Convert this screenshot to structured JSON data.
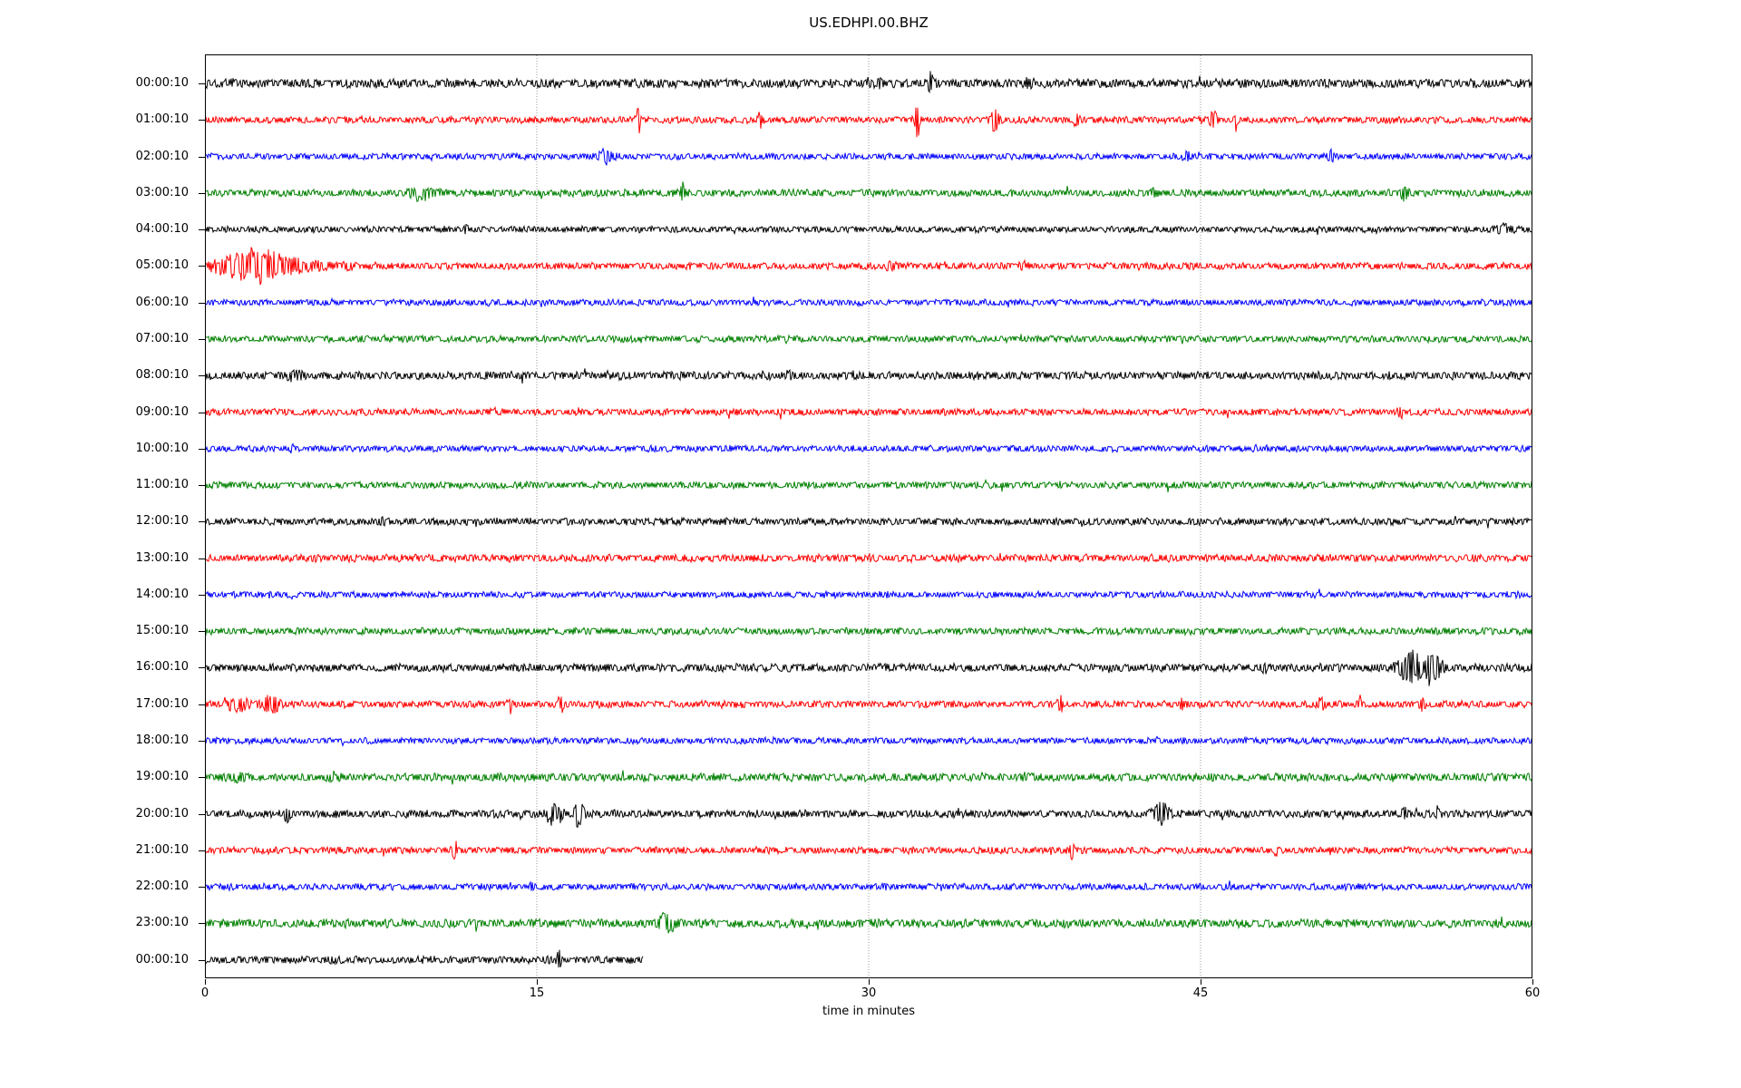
{
  "chart_data": {
    "type": "line",
    "subtype": "seismogram-helicorder",
    "title": "US.EDHPI.00.BHZ",
    "xlabel": "time in minutes",
    "x_range": [
      0,
      60
    ],
    "x_ticks": [
      "0",
      "15",
      "30",
      "45",
      "60"
    ],
    "x_tick_values": [
      0,
      15,
      30,
      45,
      60
    ],
    "grid_minutes": [
      15,
      30,
      45
    ],
    "grid_on": true,
    "grid_color": "#999999",
    "frame_color": "#000000",
    "background_color": "#ffffff",
    "colors_cycle": [
      "#000000",
      "#ff0000",
      "#0000ff",
      "#008000"
    ],
    "minutes_per_row": 60,
    "rows": [
      {
        "label": "00:00:10",
        "color": "#000000",
        "base": 4.2,
        "duration": 60,
        "events": [
          {
            "t": 30.5,
            "a": 4,
            "w": 0.1
          },
          {
            "t": 32.8,
            "a": 11,
            "w": 0.08
          },
          {
            "t": 37.3,
            "a": 4,
            "w": 0.15
          }
        ]
      },
      {
        "label": "01:00:10",
        "color": "#ff0000",
        "base": 3.2,
        "duration": 60,
        "events": [
          {
            "t": 19.6,
            "a": 14,
            "w": 0.07
          },
          {
            "t": 25.1,
            "a": 8,
            "w": 0.07
          },
          {
            "t": 32.2,
            "a": 20,
            "w": 0.07
          },
          {
            "t": 35.7,
            "a": 13,
            "w": 0.12
          },
          {
            "t": 39.4,
            "a": 6,
            "w": 0.1
          },
          {
            "t": 45.6,
            "a": 9,
            "w": 0.12
          },
          {
            "t": 46.6,
            "a": 10,
            "w": 0.06
          }
        ]
      },
      {
        "label": "02:00:10",
        "color": "#0000ff",
        "base": 3.0,
        "duration": 60,
        "events": [
          {
            "t": 18.1,
            "a": 7,
            "w": 0.25
          },
          {
            "t": 44.4,
            "a": 4,
            "w": 0.15
          },
          {
            "t": 50.9,
            "a": 6,
            "w": 0.08
          }
        ]
      },
      {
        "label": "03:00:10",
        "color": "#008000",
        "base": 3.4,
        "duration": 60,
        "events": [
          {
            "t": 9.7,
            "a": 6,
            "w": 0.4
          },
          {
            "t": 21.6,
            "a": 10,
            "w": 0.07
          },
          {
            "t": 42.9,
            "a": 4,
            "w": 0.1
          },
          {
            "t": 54.2,
            "a": 8,
            "w": 0.12
          }
        ]
      },
      {
        "label": "04:00:10",
        "color": "#000000",
        "base": 3.0,
        "duration": 60,
        "events": [
          {
            "t": 11.8,
            "a": 5,
            "w": 0.06
          },
          {
            "t": 58.8,
            "a": 4,
            "w": 0.3
          }
        ]
      },
      {
        "label": "05:00:10",
        "color": "#ff0000",
        "base": 3.3,
        "duration": 60,
        "events": [
          {
            "t": 2.2,
            "a": 13,
            "w": 0.9
          },
          {
            "t": 3.0,
            "a": 6,
            "w": 2.0
          },
          {
            "t": 31.0,
            "a": 3,
            "w": 0.2
          },
          {
            "t": 37.0,
            "a": 3,
            "w": 0.15
          },
          {
            "t": 44.5,
            "a": 3,
            "w": 0.1
          }
        ]
      },
      {
        "label": "06:00:10",
        "color": "#0000ff",
        "base": 3.0,
        "duration": 60,
        "events": []
      },
      {
        "label": "07:00:10",
        "color": "#008000",
        "base": 3.2,
        "duration": 60,
        "events": []
      },
      {
        "label": "08:00:10",
        "color": "#000000",
        "base": 3.8,
        "duration": 60,
        "events": [
          {
            "t": 4.0,
            "a": 3,
            "w": 0.3
          },
          {
            "t": 26.4,
            "a": 3,
            "w": 0.2
          }
        ]
      },
      {
        "label": "09:00:10",
        "color": "#ff0000",
        "base": 3.2,
        "duration": 60,
        "events": [
          {
            "t": 54.0,
            "a": 3,
            "w": 0.1
          }
        ]
      },
      {
        "label": "10:00:10",
        "color": "#0000ff",
        "base": 3.0,
        "duration": 60,
        "events": [
          {
            "t": 3.9,
            "a": 3,
            "w": 0.1
          }
        ]
      },
      {
        "label": "11:00:10",
        "color": "#008000",
        "base": 3.2,
        "duration": 60,
        "events": []
      },
      {
        "label": "12:00:10",
        "color": "#000000",
        "base": 3.4,
        "duration": 60,
        "events": [
          {
            "t": 8.0,
            "a": 3,
            "w": 0.1
          }
        ]
      },
      {
        "label": "13:00:10",
        "color": "#ff0000",
        "base": 3.6,
        "duration": 60,
        "events": []
      },
      {
        "label": "14:00:10",
        "color": "#0000ff",
        "base": 3.0,
        "duration": 60,
        "events": []
      },
      {
        "label": "15:00:10",
        "color": "#008000",
        "base": 3.3,
        "duration": 60,
        "events": []
      },
      {
        "label": "16:00:10",
        "color": "#000000",
        "base": 3.8,
        "duration": 60,
        "events": [
          {
            "t": 47.8,
            "a": 4,
            "w": 0.08
          },
          {
            "t": 54.6,
            "a": 16,
            "w": 0.45
          },
          {
            "t": 55.6,
            "a": 10,
            "w": 0.3
          }
        ]
      },
      {
        "label": "17:00:10",
        "color": "#ff0000",
        "base": 3.3,
        "duration": 60,
        "events": [
          {
            "t": 1.5,
            "a": 7,
            "w": 0.3
          },
          {
            "t": 3.0,
            "a": 9,
            "w": 0.25
          },
          {
            "t": 13.8,
            "a": 10,
            "w": 0.07
          },
          {
            "t": 16.1,
            "a": 7,
            "w": 0.1
          },
          {
            "t": 38.7,
            "a": 9,
            "w": 0.07
          },
          {
            "t": 44.2,
            "a": 6,
            "w": 0.1
          },
          {
            "t": 50.5,
            "a": 9,
            "w": 0.1
          },
          {
            "t": 52.2,
            "a": 8,
            "w": 0.08
          },
          {
            "t": 55.0,
            "a": 6,
            "w": 0.1
          }
        ]
      },
      {
        "label": "18:00:10",
        "color": "#0000ff",
        "base": 3.0,
        "duration": 60,
        "events": []
      },
      {
        "label": "19:00:10",
        "color": "#008000",
        "base": 3.8,
        "duration": 60,
        "events": [
          {
            "t": 1.5,
            "a": 3,
            "w": 0.5
          },
          {
            "t": 5.8,
            "a": 3,
            "w": 0.2
          },
          {
            "t": 37.2,
            "a": 2,
            "w": 0.2
          }
        ]
      },
      {
        "label": "20:00:10",
        "color": "#000000",
        "base": 3.6,
        "duration": 60,
        "events": [
          {
            "t": 3.7,
            "a": 9,
            "w": 0.1
          },
          {
            "t": 15.8,
            "a": 11,
            "w": 0.25
          },
          {
            "t": 16.9,
            "a": 13,
            "w": 0.15
          },
          {
            "t": 43.2,
            "a": 12,
            "w": 0.25
          },
          {
            "t": 54.2,
            "a": 7,
            "w": 0.08
          },
          {
            "t": 55.7,
            "a": 9,
            "w": 0.06
          }
        ]
      },
      {
        "label": "21:00:10",
        "color": "#ff0000",
        "base": 3.2,
        "duration": 60,
        "events": [
          {
            "t": 11.3,
            "a": 9,
            "w": 0.1
          },
          {
            "t": 39.2,
            "a": 10,
            "w": 0.07
          },
          {
            "t": 48.4,
            "a": 8,
            "w": 0.06
          }
        ]
      },
      {
        "label": "22:00:10",
        "color": "#0000ff",
        "base": 3.1,
        "duration": 60,
        "events": [
          {
            "t": 14.8,
            "a": 3,
            "w": 0.1
          }
        ]
      },
      {
        "label": "23:00:10",
        "color": "#008000",
        "base": 4.0,
        "duration": 60,
        "events": [
          {
            "t": 20.8,
            "a": 9,
            "w": 0.35
          }
        ]
      },
      {
        "label": "00:00:10",
        "color": "#000000",
        "base": 3.6,
        "duration": 19.8,
        "events": [
          {
            "t": 16.0,
            "a": 10,
            "w": 0.08
          }
        ]
      }
    ]
  }
}
